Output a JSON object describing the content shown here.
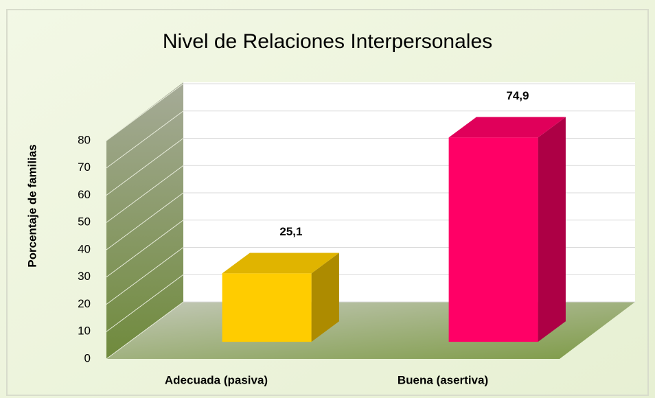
{
  "chart_data": {
    "type": "bar3d",
    "title": "Nivel de Relaciones Interpersonales",
    "y_label": "Porcentaje de familias",
    "categories": [
      "Adecuada (pasiva)",
      "Buena (asertiva)"
    ],
    "values": [
      25.1,
      74.9
    ],
    "value_labels": [
      "25,1",
      "74,9"
    ],
    "colors": [
      "#ffcc00",
      "#ff0066"
    ],
    "ylim": [
      0,
      80
    ],
    "yticks": [
      0,
      10,
      20,
      30,
      40,
      50,
      60,
      70,
      80
    ],
    "grid": true
  }
}
